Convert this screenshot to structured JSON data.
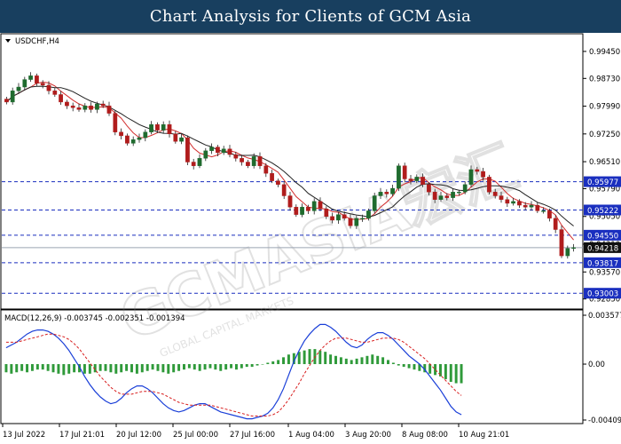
{
  "header": {
    "title": "Chart Analysis for Clients of GCM Asia"
  },
  "watermark": {
    "text": "GCMASIA宏汇",
    "subtext": "GLOBAL CAPITAL MARKETS"
  },
  "colors": {
    "header_bg": "#183f5f",
    "bull": "#1f6b2e",
    "bear": "#b01c1c",
    "ma_fast": "#d22e2e",
    "ma_slow": "#222222",
    "level_line": "#1a2fbf",
    "level_box": "#1a2fbf",
    "price_box": "#111111",
    "macd_line": "#1a3fd8",
    "signal_line": "#d81e1e",
    "hist": "#2f9a3a"
  },
  "chart_data": [
    {
      "type": "candlestick",
      "title": "USDCHF,H4",
      "y_ticks": [
        "0.99450",
        "0.98730",
        "0.97990",
        "0.97250",
        "0.96510",
        "0.95790",
        "0.95050",
        "0.94310",
        "0.93570",
        "0.92850"
      ],
      "ylim": [
        0.927,
        0.9985
      ],
      "x_tick_labels": [
        "13 Jul 2022",
        "17 Jul 21:01",
        "20 Jul 12:00",
        "25 Jul 00:00",
        "27 Jul 16:00",
        "1 Aug 04:00",
        "3 Aug 20:00",
        "8 Aug 08:00",
        "10 Aug 21:01"
      ],
      "price_levels": [
        {
          "label": "0.95977",
          "value": 0.95977,
          "style": "dashed"
        },
        {
          "label": "0.95222",
          "value": 0.95222,
          "style": "dashed"
        },
        {
          "label": "0.94550",
          "value": 0.9455,
          "style": "dashed"
        },
        {
          "label": "0.93817",
          "value": 0.93817,
          "style": "dashed"
        },
        {
          "label": "0.93003",
          "value": 0.93003,
          "style": "dashed"
        }
      ],
      "current_price": {
        "label": "0.94218",
        "value": 0.94218
      },
      "moving_averages": [
        "fast",
        "slow"
      ],
      "closes": [
        0.981,
        0.984,
        0.985,
        0.987,
        0.988,
        0.986,
        0.9855,
        0.984,
        0.983,
        0.981,
        0.98,
        0.9795,
        0.979,
        0.98,
        0.979,
        0.9805,
        0.98,
        0.978,
        0.973,
        0.972,
        0.97,
        0.971,
        0.9715,
        0.973,
        0.975,
        0.9735,
        0.975,
        0.9725,
        0.9705,
        0.9715,
        0.965,
        0.964,
        0.966,
        0.968,
        0.969,
        0.9675,
        0.9685,
        0.967,
        0.966,
        0.965,
        0.964,
        0.9665,
        0.964,
        0.962,
        0.96,
        0.959,
        0.956,
        0.953,
        0.951,
        0.953,
        0.952,
        0.9545,
        0.9525,
        0.9505,
        0.9495,
        0.951,
        0.95,
        0.948,
        0.95,
        0.95,
        0.952,
        0.956,
        0.957,
        0.9565,
        0.958,
        0.964,
        0.9605,
        0.96,
        0.961,
        0.959,
        0.957,
        0.955,
        0.956,
        0.9555,
        0.957,
        0.957,
        0.959,
        0.963,
        0.9625,
        0.961,
        0.957,
        0.956,
        0.955,
        0.954,
        0.9545,
        0.9535,
        0.953,
        0.9535,
        0.952,
        0.952,
        0.95,
        0.947,
        0.94,
        0.942,
        0.94218
      ]
    },
    {
      "type": "macd",
      "title": "MACD(12,26,9) -0.003745 -0.002351 -0.001394",
      "y_ticks": [
        "0.003577",
        "0.00",
        "-0.004093"
      ],
      "ylim": [
        -0.004093,
        0.003577
      ],
      "macd": [
        0.0012,
        0.0014,
        0.0016,
        0.0019,
        0.0022,
        0.0024,
        0.0025,
        0.0025,
        0.0024,
        0.0022,
        0.0019,
        0.0015,
        0.001,
        0.0004,
        -0.0002,
        -0.0009,
        -0.0015,
        -0.002,
        -0.0024,
        -0.0027,
        -0.0029,
        -0.0028,
        -0.0025,
        -0.0021,
        -0.0018,
        -0.0016,
        -0.0016,
        -0.0018,
        -0.0021,
        -0.0025,
        -0.0029,
        -0.0032,
        -0.0034,
        -0.0035,
        -0.0034,
        -0.0032,
        -0.003,
        -0.0029,
        -0.0029,
        -0.0031,
        -0.0033,
        -0.0035,
        -0.0036,
        -0.0037,
        -0.0038,
        -0.0039,
        -0.004,
        -0.004,
        -0.0039,
        -0.0038,
        -0.0036,
        -0.0032,
        -0.0026,
        -0.0018,
        -0.0008,
        0.0002,
        0.001,
        0.0017,
        0.0022,
        0.0026,
        0.0029,
        0.0029,
        0.0027,
        0.0024,
        0.002,
        0.0016,
        0.0013,
        0.0012,
        0.0014,
        0.0018,
        0.0021,
        0.0023,
        0.0023,
        0.0021,
        0.0018,
        0.0014,
        0.001,
        0.0006,
        0.0003,
        0.0,
        -0.0004,
        -0.0009,
        -0.0014,
        -0.0019,
        -0.0025,
        -0.0031,
        -0.0035,
        -0.0037
      ],
      "signal": [
        0.0016,
        0.0016,
        0.0016,
        0.0017,
        0.0018,
        0.0019,
        0.002,
        0.0021,
        0.0022,
        0.0022,
        0.0021,
        0.002,
        0.0018,
        0.0015,
        0.0011,
        0.0006,
        0.0001,
        -0.0004,
        -0.0009,
        -0.0013,
        -0.0017,
        -0.002,
        -0.0022,
        -0.0022,
        -0.0022,
        -0.0021,
        -0.002,
        -0.002,
        -0.002,
        -0.0021,
        -0.0022,
        -0.0024,
        -0.0026,
        -0.0028,
        -0.0029,
        -0.003,
        -0.003,
        -0.003,
        -0.003,
        -0.003,
        -0.0031,
        -0.0032,
        -0.0033,
        -0.0034,
        -0.0035,
        -0.0036,
        -0.0037,
        -0.0038,
        -0.0038,
        -0.0038,
        -0.0038,
        -0.0037,
        -0.0035,
        -0.0031,
        -0.0026,
        -0.002,
        -0.0014,
        -0.0007,
        -0.0001,
        0.0005,
        0.001,
        0.0014,
        0.0017,
        0.0019,
        0.0019,
        0.0019,
        0.0018,
        0.0017,
        0.0016,
        0.0016,
        0.0017,
        0.0018,
        0.0019,
        0.0019,
        0.0019,
        0.0018,
        0.0016,
        0.0013,
        0.001,
        0.0007,
        0.0004,
        0.0,
        -0.0004,
        -0.0008,
        -0.0012,
        -0.0016,
        -0.002,
        -0.0023
      ],
      "histogram": [
        -0.0006,
        -0.0007,
        -0.0006,
        -0.0005,
        -0.0006,
        -0.0005,
        -0.0004,
        -0.0004,
        -0.0005,
        -0.0006,
        -0.0007,
        -0.0008,
        -0.0007,
        -0.0006,
        -0.0006,
        -0.0007,
        -0.0007,
        -0.0006,
        -0.0005,
        -0.0005,
        -0.0006,
        -0.0007,
        -0.0006,
        -0.0005,
        -0.0006,
        -0.0007,
        -0.0006,
        -0.0005,
        -0.0004,
        -0.0005,
        -0.0006,
        -0.0007,
        -0.0006,
        -0.0005,
        -0.0004,
        -0.0003,
        -0.0004,
        -0.0005,
        -0.0004,
        -0.0003,
        -0.0004,
        -0.0005,
        -0.0004,
        -0.0003,
        -0.0004,
        -0.0003,
        -0.0002,
        -0.0002,
        -0.0001,
        0.0,
        0.0001,
        0.0002,
        0.0003,
        0.0005,
        0.0007,
        0.0008,
        0.0009,
        0.001,
        0.0011,
        0.0011,
        0.001,
        0.0009,
        0.0007,
        0.0006,
        0.0005,
        0.0004,
        0.0003,
        0.0004,
        0.0005,
        0.0006,
        0.0007,
        0.0006,
        0.0005,
        0.0003,
        0.0001,
        -0.0001,
        -0.0002,
        -0.0003,
        -0.0004,
        -0.0005,
        -0.0006,
        -0.0007,
        -0.0008,
        -0.0009,
        -0.0011,
        -0.0013,
        -0.0014,
        -0.0014
      ]
    }
  ]
}
